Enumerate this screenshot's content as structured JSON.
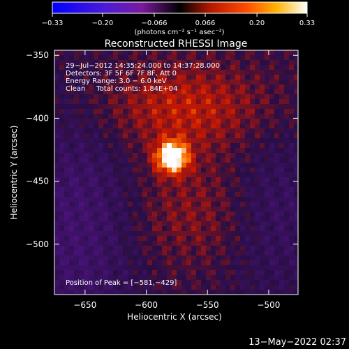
{
  "chart_data": {
    "type": "heatmap",
    "title": "Reconstructed RHESSI Image",
    "xlabel": "Heliocentric X (arcsec)",
    "ylabel": "Heliocentric Y (arcsec)",
    "xlim": [
      -675,
      -476
    ],
    "ylim": [
      -540,
      -346
    ],
    "x_ticks": [
      -650,
      -600,
      -550,
      -500
    ],
    "x_tick_labels": [
      "−650",
      "−600",
      "−550",
      "−500"
    ],
    "y_ticks": [
      -350,
      -400,
      -450,
      -500
    ],
    "y_tick_labels": [
      "−350",
      "−400",
      "−450",
      "−500"
    ],
    "colorbar": {
      "range": [
        -0.33,
        0.33
      ],
      "ticks": [
        -0.33,
        -0.2,
        -0.066,
        0.066,
        0.2,
        0.33
      ],
      "tick_labels": [
        "−0.33",
        "−0.20",
        "−0.066",
        "0.066",
        "0.20",
        "0.33"
      ],
      "unit_label": "(photons cm⁻² s⁻¹ asec⁻²)",
      "colormap": "heat"
    },
    "info_lines": [
      "29−Jul−2012 14:35:24.000 to 14:37:28.000",
      "Detectors: 3F 5F 6F 7F 8F, Att 0",
      "Energy Range: 3.0 − 6.0 keV",
      "Clean     Total counts: 1.84E+04"
    ],
    "peak_label": "Position of Peak = [−581,−429]",
    "peak": {
      "x": -581,
      "y": -429,
      "value": 0.33
    },
    "grid": false
  },
  "footer": {
    "timestamp": "13−May−2022 02:37"
  }
}
